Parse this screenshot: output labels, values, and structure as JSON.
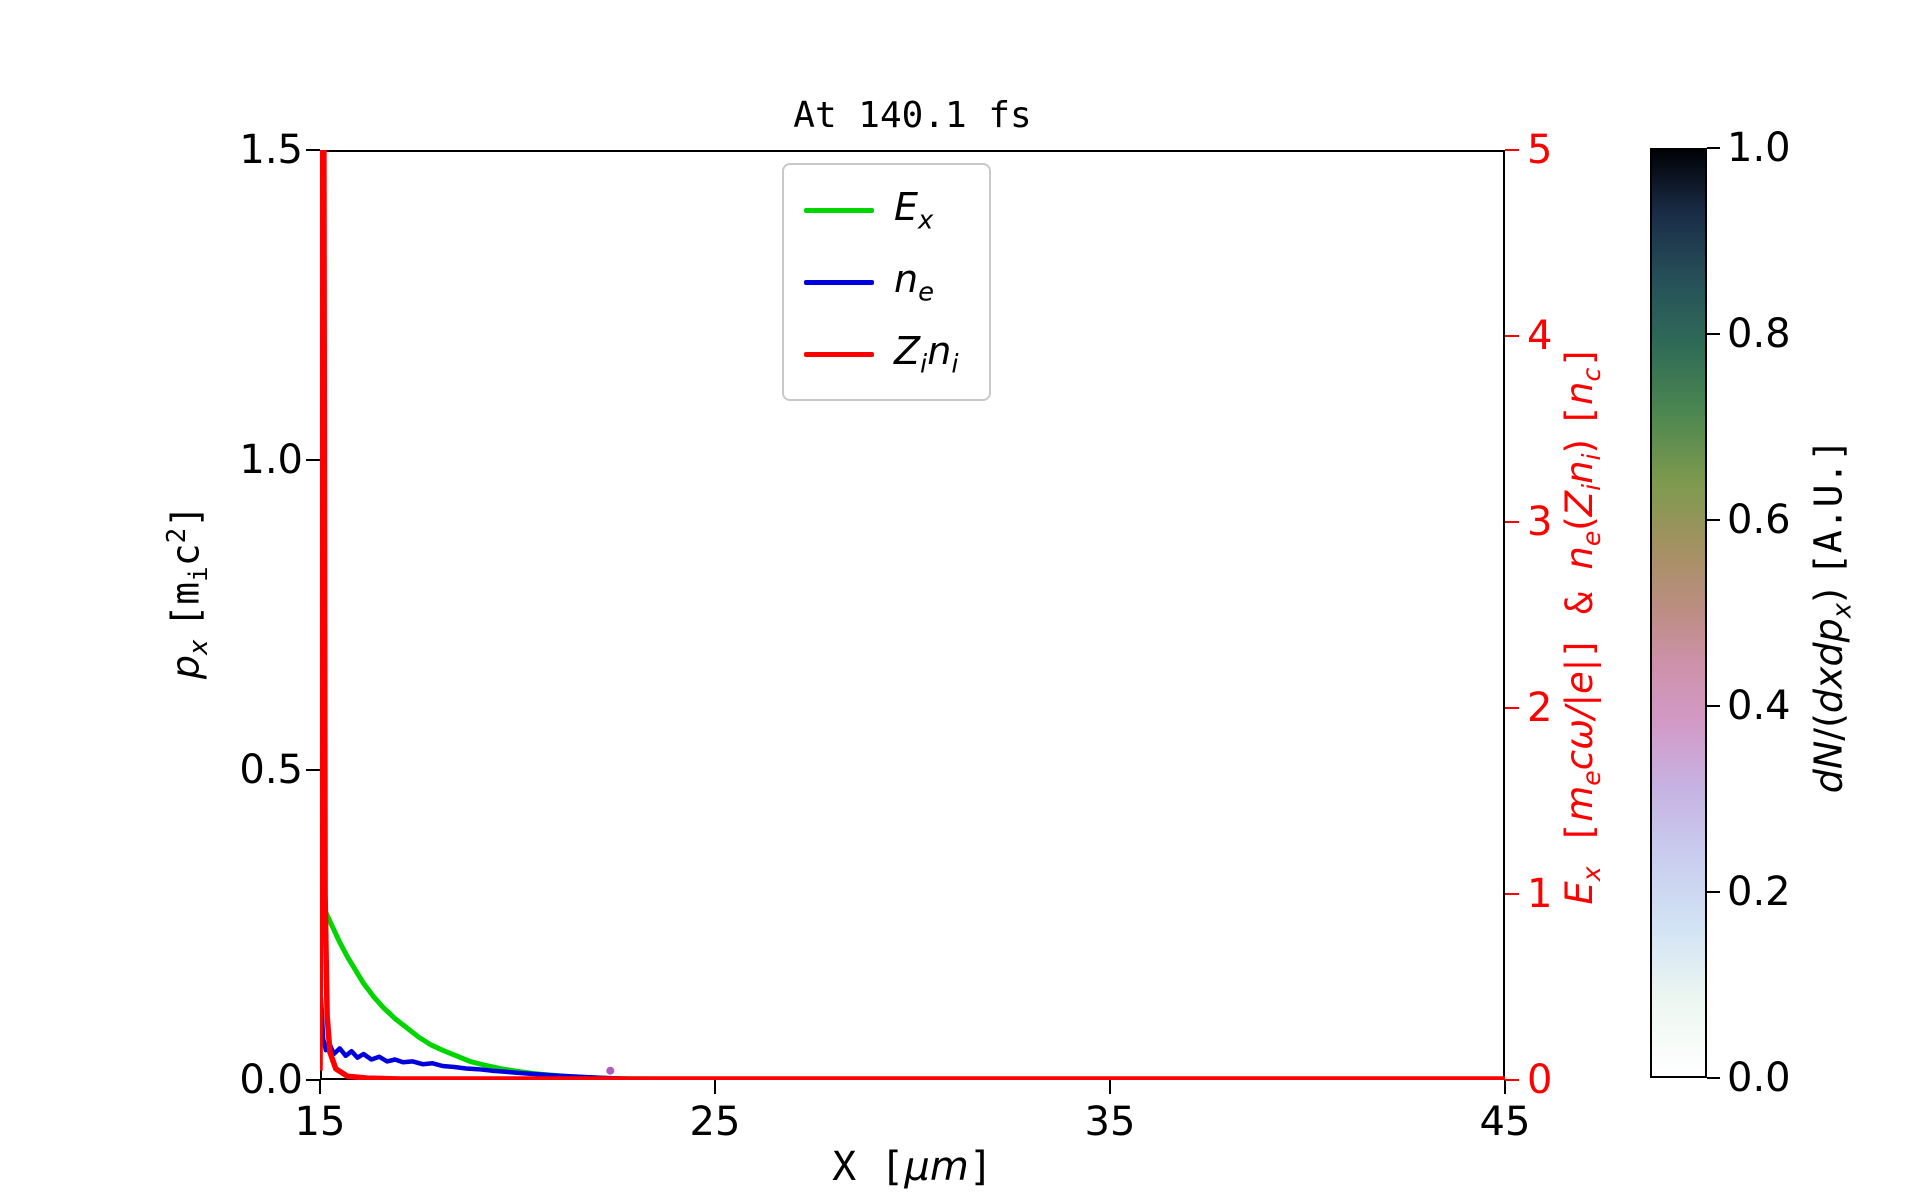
{
  "chart_data": {
    "type": "line",
    "title": "At 140.1 fs",
    "x_axis": {
      "label_text": "X [μm]",
      "label_segments": [
        {
          "t": "X ",
          "mono": true
        },
        {
          "t": "[",
          "mono": true
        },
        {
          "t": "μm",
          "it": true
        },
        {
          "t": "]",
          "mono": true
        }
      ],
      "lim": [
        15,
        45
      ],
      "tick_values": [
        15,
        25,
        35,
        45
      ],
      "tick_labels": [
        "15",
        "25",
        "35",
        "45"
      ]
    },
    "y_left": {
      "label_text": "p_x [m_i c^2]",
      "label_segments": [
        {
          "t": "p",
          "it": true
        },
        {
          "t": "x",
          "it": true,
          "sub": true
        },
        {
          "t": " "
        },
        {
          "t": "[m",
          "mono": true
        },
        {
          "t": "i",
          "mono": true,
          "sub": true
        },
        {
          "t": "c",
          "mono": true
        },
        {
          "t": "2",
          "mono": true,
          "sup": true
        },
        {
          "t": "]",
          "mono": true
        }
      ],
      "lim": [
        0,
        1.5
      ],
      "tick_values": [
        0,
        0.5,
        1.0,
        1.5
      ],
      "tick_labels": [
        "0.0",
        "0.5",
        "1.0",
        "1.5"
      ],
      "color": "#000000"
    },
    "y_right": {
      "label_text": "E_x [m_e cω/|e|] & n_e(Z_i n_i) [n_c]",
      "label_segments": [
        {
          "t": "E",
          "it": true
        },
        {
          "t": "x",
          "it": true,
          "sub": true
        },
        {
          "t": " [",
          "mono": true
        },
        {
          "t": "m",
          "it": true
        },
        {
          "t": "e",
          "it": true,
          "sub": true
        },
        {
          "t": "c",
          "it": true
        },
        {
          "t": "ω",
          "it": true
        },
        {
          "t": "/|e|",
          "it": true
        },
        {
          "t": "] ",
          "mono": true
        },
        {
          "t": "& ",
          "mono": true
        },
        {
          "t": "n",
          "it": true
        },
        {
          "t": "e",
          "it": true,
          "sub": true
        },
        {
          "t": "("
        },
        {
          "t": "Z",
          "it": true
        },
        {
          "t": "i",
          "it": true,
          "sub": true
        },
        {
          "t": "n",
          "it": true
        },
        {
          "t": "i",
          "it": true,
          "sub": true
        },
        {
          "t": ") "
        },
        {
          "t": "[",
          "mono": true
        },
        {
          "t": "n",
          "it": true
        },
        {
          "t": "c",
          "it": true,
          "sub": true
        },
        {
          "t": "]",
          "mono": true
        }
      ],
      "lim": [
        0,
        5
      ],
      "tick_values": [
        0,
        1,
        2,
        3,
        4,
        5
      ],
      "tick_labels": [
        "0",
        "1",
        "2",
        "3",
        "4",
        "5"
      ],
      "color": "#ff0000"
    },
    "series": [
      {
        "id": "Ex",
        "name": "E_x",
        "label_segments": [
          {
            "t": "E",
            "it": true
          },
          {
            "t": "x",
            "it": true,
            "sub": true
          }
        ],
        "color": "#00d500",
        "line_width": 5,
        "axis": "right",
        "x": [
          15.0,
          15.15,
          15.3,
          15.5,
          15.7,
          15.9,
          16.1,
          16.35,
          16.6,
          16.9,
          17.2,
          17.5,
          17.8,
          18.1,
          18.45,
          18.8,
          19.2,
          19.6,
          20.0,
          20.4,
          20.8,
          21.2,
          21.7,
          22.2,
          22.8,
          23.5,
          24.5,
          26.0,
          30.0,
          45.0
        ],
        "y": [
          0.97,
          0.9,
          0.83,
          0.74,
          0.66,
          0.59,
          0.52,
          0.45,
          0.39,
          0.33,
          0.28,
          0.23,
          0.19,
          0.16,
          0.13,
          0.1,
          0.078,
          0.06,
          0.046,
          0.035,
          0.027,
          0.02,
          0.014,
          0.009,
          0.006,
          0.003,
          0.001,
          0.0,
          0.0,
          0.0
        ]
      },
      {
        "id": "ne",
        "name": "n_e",
        "label_segments": [
          {
            "t": "n",
            "it": true
          },
          {
            "t": "e",
            "it": true,
            "sub": true
          }
        ],
        "color": "#0000dd",
        "line_width": 4.5,
        "axis": "right",
        "x": [
          15.02,
          15.08,
          15.15,
          15.25,
          15.35,
          15.5,
          15.65,
          15.8,
          15.95,
          16.1,
          16.3,
          16.5,
          16.7,
          16.9,
          17.1,
          17.35,
          17.6,
          17.85,
          18.1,
          18.4,
          18.7,
          19.0,
          19.35,
          19.7,
          20.1,
          20.5,
          20.9,
          21.3,
          21.8,
          22.3,
          22.9,
          23.6,
          24.5,
          26.0,
          45.0
        ],
        "y": [
          0.45,
          0.22,
          0.16,
          0.19,
          0.14,
          0.17,
          0.13,
          0.155,
          0.12,
          0.14,
          0.11,
          0.125,
          0.1,
          0.11,
          0.095,
          0.1,
          0.085,
          0.09,
          0.075,
          0.07,
          0.062,
          0.058,
          0.05,
          0.044,
          0.037,
          0.031,
          0.025,
          0.02,
          0.015,
          0.01,
          0.006,
          0.003,
          0.001,
          0.0,
          0.0
        ]
      },
      {
        "id": "Zini",
        "name": "Z_i n_i",
        "label_segments": [
          {
            "t": "Z",
            "it": true
          },
          {
            "t": "i",
            "it": true,
            "sub": true
          },
          {
            "t": "n",
            "it": true
          },
          {
            "t": "i",
            "it": true,
            "sub": true
          }
        ],
        "color": "#ff0000",
        "line_width": 5.5,
        "axis": "right",
        "x": [
          15.0,
          15.02,
          15.04,
          15.07,
          15.1,
          15.13,
          15.18,
          15.25,
          15.4,
          15.7,
          16.2,
          17.0,
          18.0,
          45.0
        ],
        "y": [
          0.05,
          1.5,
          5.0,
          5.0,
          5.0,
          1.0,
          0.35,
          0.15,
          0.06,
          0.02,
          0.01,
          0.005,
          0.0,
          0.0
        ]
      }
    ],
    "scatter_points": [
      {
        "x": 22.35,
        "y": 0.05,
        "r": 4,
        "color": "#b35ac0"
      }
    ],
    "colorbar": {
      "label_text": "dN/(dxdp_x) [A.U.]",
      "label_segments": [
        {
          "t": "dN",
          "it": true
        },
        {
          "t": "/("
        },
        {
          "t": "dxdp",
          "it": true
        },
        {
          "t": "x",
          "it": true,
          "sub": true
        },
        {
          "t": ")"
        },
        {
          "t": " "
        },
        {
          "t": "[A.U.]",
          "mono": true
        }
      ],
      "tick_values": [
        0,
        0.2,
        0.4,
        0.6,
        0.8,
        1.0
      ],
      "tick_labels": [
        "0.0",
        "0.2",
        "0.4",
        "0.6",
        "0.8",
        "1.0"
      ],
      "gradient_stops": [
        {
          "pos": 0,
          "color": "#ffffff"
        },
        {
          "pos": 8,
          "color": "#edf7f1"
        },
        {
          "pos": 16,
          "color": "#d2e3f4"
        },
        {
          "pos": 24,
          "color": "#c9ccee"
        },
        {
          "pos": 31,
          "color": "#c6b3e3"
        },
        {
          "pos": 38,
          "color": "#d29ac7"
        },
        {
          "pos": 44,
          "color": "#cf92ad"
        },
        {
          "pos": 50,
          "color": "#bd8d84"
        },
        {
          "pos": 57,
          "color": "#a49162"
        },
        {
          "pos": 64,
          "color": "#7e9a4e"
        },
        {
          "pos": 72,
          "color": "#4a8650"
        },
        {
          "pos": 79,
          "color": "#2f6a57"
        },
        {
          "pos": 86,
          "color": "#265059"
        },
        {
          "pos": 93,
          "color": "#1a2d47"
        },
        {
          "pos": 100,
          "color": "#000205"
        }
      ]
    },
    "legend": {
      "position": "top-center-inside"
    }
  }
}
